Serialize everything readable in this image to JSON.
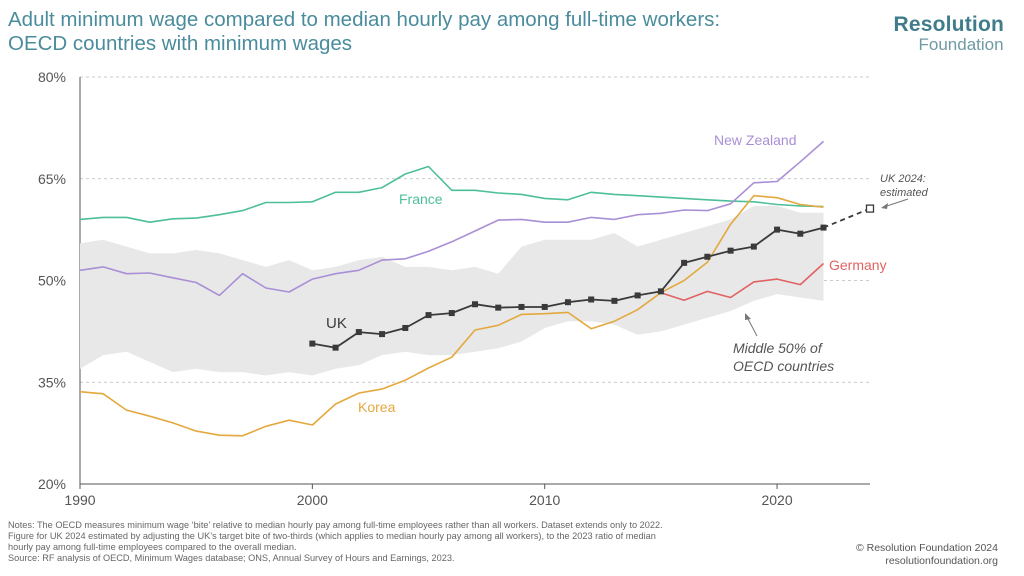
{
  "header": {
    "title_line1": "Adult minimum wage compared to median hourly pay among full-time workers:",
    "title_line2": "OECD countries with minimum wages"
  },
  "logo": {
    "line1": "Resolution",
    "line2": "Foundation"
  },
  "notes": {
    "line1": "Notes: The OECD measures minimum wage ‘bite’ relative to median hourly pay among full-time employees rather than all workers. Dataset extends only to 2022.",
    "line2": "Figure for UK 2024 estimated by adjusting the UK’s target bite of two-thirds (which applies to median hourly pay among all workers), to the 2023 ratio of median",
    "line3": "hourly pay among full-time employees compared to the overall median.",
    "line4": "Source: RF analysis of OECD, Minimum Wages database; ONS, Annual Survey of Hours and Earnings, 2023."
  },
  "footer": {
    "copyright": "© Resolution Foundation 2024",
    "website": "resolutionfoundation.org"
  },
  "colors": {
    "uk": "#3a3a3a",
    "france": "#4dbf9a",
    "new_zealand": "#a98fd6",
    "korea": "#e3a93f",
    "germany": "#e06262",
    "band": "#e8e8e8",
    "axis_text": "#555555",
    "grid": "#bbbbbb"
  },
  "chart_data": {
    "type": "line",
    "title": "Adult minimum wage compared to median hourly pay among full-time workers: OECD countries with minimum wages",
    "xlim": [
      1990,
      2024
    ],
    "ylim": [
      20,
      80
    ],
    "x_ticks": [
      1990,
      2000,
      2010,
      2020
    ],
    "y_ticks": [
      20,
      35,
      50,
      65,
      80
    ],
    "y_tick_labels": [
      "20%",
      "35%",
      "50%",
      "65%",
      "80%"
    ],
    "grid": "horizontal dashed",
    "band": {
      "label": "Middle 50% of OECD countries",
      "label_line1": "Middle 50% of",
      "label_line2": "OECD countries",
      "x": [
        1990,
        1991,
        1992,
        1993,
        1994,
        1995,
        1996,
        1997,
        1998,
        1999,
        2000,
        2001,
        2002,
        2003,
        2004,
        2005,
        2006,
        2007,
        2008,
        2009,
        2010,
        2011,
        2012,
        2013,
        2014,
        2015,
        2016,
        2017,
        2018,
        2019,
        2020,
        2021,
        2022
      ],
      "upper": [
        55.5,
        56,
        55,
        54,
        54,
        54.5,
        54,
        53,
        52,
        53,
        51.5,
        52,
        53,
        53.5,
        52,
        52,
        51.5,
        52,
        51,
        55,
        56,
        56,
        56,
        57,
        55,
        56,
        57,
        58,
        59,
        61,
        61,
        60,
        60
      ],
      "lower": [
        37,
        39,
        39.5,
        38,
        36.5,
        37,
        36.5,
        36.5,
        36,
        36.5,
        36,
        37,
        37.5,
        39,
        39.5,
        39,
        39,
        39.5,
        40,
        41,
        43,
        44,
        44,
        43.5,
        42,
        42.5,
        43.5,
        44.5,
        45.5,
        47,
        48,
        47.5,
        47
      ]
    },
    "series": [
      {
        "name": "UK",
        "color_key": "uk",
        "markers": true,
        "x": [
          2000,
          2001,
          2002,
          2003,
          2004,
          2005,
          2006,
          2007,
          2008,
          2009,
          2010,
          2011,
          2012,
          2013,
          2014,
          2015,
          2016,
          2017,
          2018,
          2019,
          2020,
          2021,
          2022
        ],
        "y": [
          40.7,
          40.1,
          42.4,
          42.1,
          43,
          44.9,
          45.2,
          46.5,
          46,
          46.1,
          46.1,
          46.8,
          47.2,
          47,
          47.8,
          48.4,
          52.6,
          53.5,
          54.4,
          55,
          57.5,
          56.9,
          57.8
        ]
      },
      {
        "name": "France",
        "color_key": "france",
        "markers": false,
        "x": [
          1990,
          1991,
          1992,
          1993,
          1994,
          1995,
          1996,
          1997,
          1998,
          1999,
          2000,
          2001,
          2002,
          2003,
          2004,
          2005,
          2006,
          2007,
          2008,
          2009,
          2010,
          2011,
          2012,
          2013,
          2014,
          2015,
          2016,
          2017,
          2018,
          2019,
          2020,
          2021,
          2022
        ],
        "y": [
          59,
          59.3,
          59.3,
          58.6,
          59.1,
          59.2,
          59.7,
          60.3,
          61.5,
          61.5,
          61.6,
          63,
          63,
          63.7,
          65.7,
          66.8,
          63.3,
          63.3,
          62.9,
          62.7,
          62.1,
          61.9,
          63,
          62.7,
          62.5,
          62.3,
          62.1,
          61.9,
          61.7,
          61.6,
          61.2,
          61,
          60.9
        ]
      },
      {
        "name": "New Zealand",
        "color_key": "new_zealand",
        "markers": false,
        "x": [
          1990,
          1991,
          1992,
          1993,
          1994,
          1995,
          1996,
          1997,
          1998,
          1999,
          2000,
          2001,
          2002,
          2003,
          2004,
          2005,
          2006,
          2007,
          2008,
          2009,
          2010,
          2011,
          2012,
          2013,
          2014,
          2015,
          2016,
          2017,
          2018,
          2019,
          2020,
          2021,
          2022
        ],
        "y": [
          51.5,
          52,
          51,
          51.1,
          50.4,
          49.7,
          47.8,
          51,
          48.9,
          48.3,
          50.2,
          51,
          51.5,
          53,
          53.2,
          54.3,
          55.7,
          57.3,
          58.9,
          59,
          58.6,
          58.6,
          59.3,
          59,
          59.7,
          59.9,
          60.4,
          60.3,
          61.3,
          64.4,
          64.6,
          67.5,
          70.5
        ]
      },
      {
        "name": "Korea",
        "color_key": "korea",
        "markers": false,
        "x": [
          1990,
          1991,
          1992,
          1993,
          1994,
          1995,
          1996,
          1997,
          1998,
          1999,
          2000,
          2001,
          2002,
          2003,
          2004,
          2005,
          2006,
          2007,
          2008,
          2009,
          2010,
          2011,
          2012,
          2013,
          2014,
          2015,
          2016,
          2017,
          2018,
          2019,
          2020,
          2021,
          2022
        ],
        "y": [
          33.6,
          33.3,
          30.9,
          30,
          29,
          27.8,
          27.2,
          27.1,
          28.5,
          29.4,
          28.7,
          31.8,
          33.4,
          34,
          35.3,
          37.1,
          38.7,
          42.7,
          43.4,
          45,
          45.1,
          45.3,
          42.9,
          44,
          45.7,
          48.2,
          50,
          52.7,
          58.3,
          62.5,
          62.2,
          61.2,
          60.8
        ]
      },
      {
        "name": "Germany",
        "color_key": "germany",
        "markers": false,
        "x": [
          2015,
          2016,
          2017,
          2018,
          2019,
          2020,
          2021,
          2022
        ],
        "y": [
          48.2,
          47.1,
          48.4,
          47.5,
          49.8,
          50.2,
          49.4,
          52.5
        ]
      }
    ],
    "uk_estimate": {
      "label_line1": "UK 2024:",
      "label_line2": "estimated",
      "x_from": 2022,
      "y_from": 57.8,
      "x": 2024,
      "y": 60.6
    },
    "annotations": {
      "uk": "UK",
      "france": "France",
      "new_zealand": "New Zealand",
      "korea": "Korea",
      "germany": "Germany"
    }
  }
}
